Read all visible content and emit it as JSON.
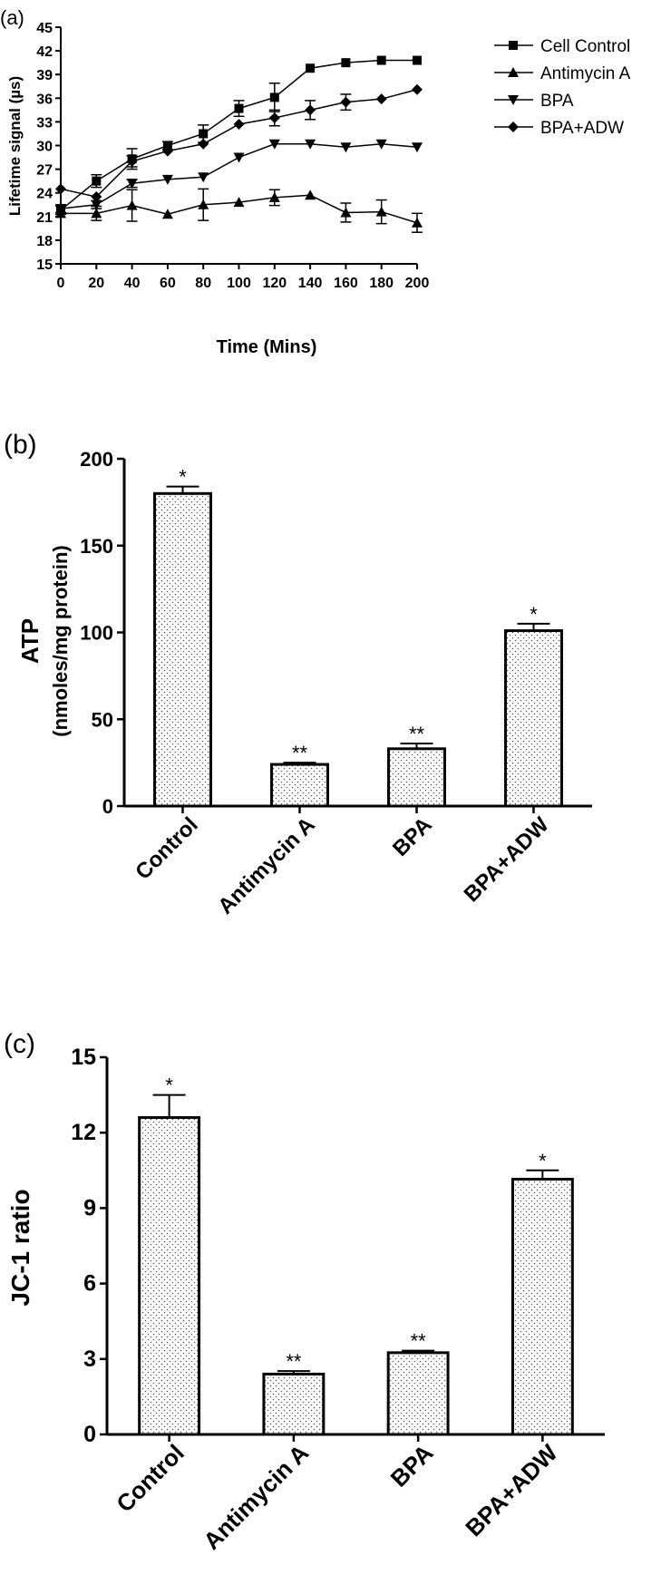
{
  "figure": {
    "panels": [
      {
        "label": "(a)"
      },
      {
        "label": "(b)"
      },
      {
        "label": "(c)"
      }
    ]
  },
  "chart_data": [
    {
      "type": "line",
      "panel": "(a)",
      "xlabel": "Time (Mins)",
      "ylabel": "Lifetime signal (µs)",
      "xlim": [
        0,
        200
      ],
      "ylim": [
        15,
        45
      ],
      "xticks": [
        0,
        20,
        40,
        60,
        80,
        100,
        120,
        140,
        160,
        180,
        200
      ],
      "yticks": [
        15,
        18,
        21,
        24,
        27,
        30,
        33,
        36,
        39,
        42,
        45
      ],
      "legend_position": "top-right",
      "x": [
        0,
        20,
        40,
        60,
        80,
        100,
        120,
        140,
        160,
        180,
        200
      ],
      "series": [
        {
          "name": "Cell Control",
          "marker": "square",
          "values": [
            21.8,
            25.5,
            28.3,
            30.0,
            31.5,
            34.7,
            36.1,
            39.8,
            40.5,
            40.8,
            40.8
          ],
          "errors": [
            0.5,
            0.8,
            1.3,
            0.5,
            1.1,
            1.0,
            1.8,
            0.0,
            0.0,
            0.0,
            0.0
          ]
        },
        {
          "name": "Antimycin A",
          "marker": "triangle-up",
          "values": [
            21.4,
            21.4,
            22.4,
            21.3,
            22.5,
            22.8,
            23.4,
            23.7,
            21.5,
            21.6,
            20.2
          ],
          "errors": [
            0.0,
            0.9,
            2.0,
            0.0,
            2.0,
            0.0,
            1.0,
            0.0,
            1.2,
            1.5,
            1.2
          ]
        },
        {
          "name": "BPA",
          "marker": "triangle-down",
          "values": [
            22.0,
            22.5,
            25.2,
            25.7,
            26.0,
            28.5,
            30.2,
            30.2,
            29.8,
            30.2,
            29.8
          ],
          "errors": [
            0.5,
            0.5,
            0.5,
            0.0,
            0.0,
            0.0,
            0.0,
            0.0,
            0.0,
            0.0,
            0.0
          ]
        },
        {
          "name": "BPA+ADW",
          "marker": "diamond",
          "values": [
            24.5,
            23.5,
            28.0,
            29.3,
            30.2,
            32.7,
            33.5,
            34.5,
            35.5,
            35.9,
            37.1
          ],
          "errors": [
            0.0,
            0.0,
            0.7,
            0.0,
            0.0,
            0.0,
            1.0,
            1.2,
            1.0,
            0.0,
            0.0
          ]
        }
      ]
    },
    {
      "type": "bar",
      "panel": "(b)",
      "ylabel_line1": "ATP",
      "ylabel_line2": "(nmoles/mg protein)",
      "ylim": [
        0,
        200
      ],
      "yticks": [
        0,
        50,
        100,
        150,
        200
      ],
      "categories": [
        "Control",
        "Antimycin A",
        "BPA",
        "BPA+ADW"
      ],
      "values": [
        180,
        24,
        33,
        101
      ],
      "errors": [
        4,
        1,
        3,
        4
      ],
      "annotations": [
        "*",
        "**",
        "**",
        "*"
      ]
    },
    {
      "type": "bar",
      "panel": "(c)",
      "ylabel": "JC-1 ratio",
      "ylim": [
        0,
        15
      ],
      "yticks": [
        0,
        3,
        6,
        9,
        12,
        15
      ],
      "categories": [
        "Control",
        "Antimycin A",
        "BPA",
        "BPA+ADW"
      ],
      "values": [
        12.6,
        2.4,
        3.25,
        10.15
      ],
      "errors": [
        0.9,
        0.12,
        0.08,
        0.35
      ],
      "annotations": [
        "*",
        "**",
        "**",
        "*"
      ]
    }
  ]
}
